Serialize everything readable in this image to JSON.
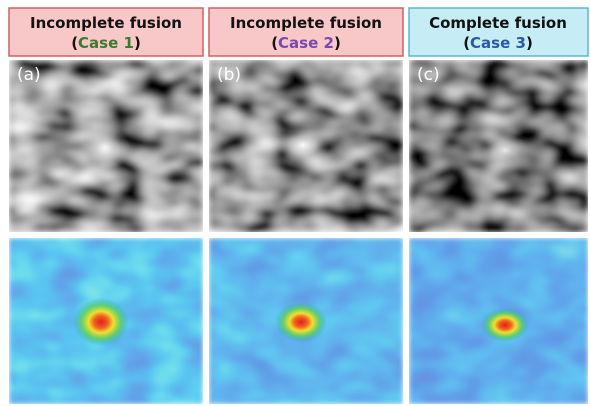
{
  "panels": [
    {
      "title": "Incomplete fusion",
      "case": [
        "(",
        "Case 1",
        ")"
      ],
      "label": "(a)"
    },
    {
      "title": "Incomplete fusion",
      "case": [
        "(",
        "Case 2",
        ")"
      ],
      "label": "(b)"
    },
    {
      "title": "Complete fusion",
      "case": [
        "(",
        "Case 3",
        ")"
      ],
      "label": "(c)"
    }
  ]
}
